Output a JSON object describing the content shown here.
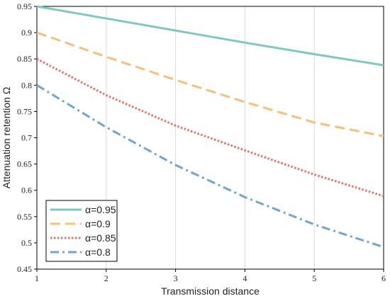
{
  "chart_data": {
    "type": "line",
    "title": "",
    "xlabel": "Transmission distance",
    "ylabel": "Attenuation retention Ω",
    "xlim": [
      1,
      6
    ],
    "ylim": [
      0.45,
      0.95
    ],
    "x_ticks": [
      "1",
      "2",
      "3",
      "4",
      "5",
      "6"
    ],
    "y_ticks": [
      "0.45",
      "0.5",
      "0.55",
      "0.6",
      "0.65",
      "0.7",
      "0.75",
      "0.8",
      "0.85",
      "0.9",
      "0.95"
    ],
    "grid": "vertical",
    "legend_position": "bottom-left",
    "x": [
      1,
      2,
      3,
      4,
      5,
      6
    ],
    "series": [
      {
        "name": "α=0.95",
        "values": [
          0.95,
          0.927,
          0.904,
          0.881,
          0.859,
          0.838
        ],
        "color": "#7fc8c0",
        "style": "solid"
      },
      {
        "name": "α=0.9",
        "values": [
          0.9,
          0.854,
          0.81,
          0.768,
          0.729,
          0.703
        ],
        "color": "#f5c07a",
        "style": "dashed"
      },
      {
        "name": "α=0.85",
        "values": [
          0.85,
          0.781,
          0.723,
          0.676,
          0.63,
          0.589
        ],
        "color": "#ec7063",
        "style": "dotted"
      },
      {
        "name": "α=0.8",
        "values": [
          0.8,
          0.72,
          0.648,
          0.587,
          0.535,
          0.492
        ],
        "color": "#6fa6d0",
        "style": "dashdot"
      }
    ]
  }
}
